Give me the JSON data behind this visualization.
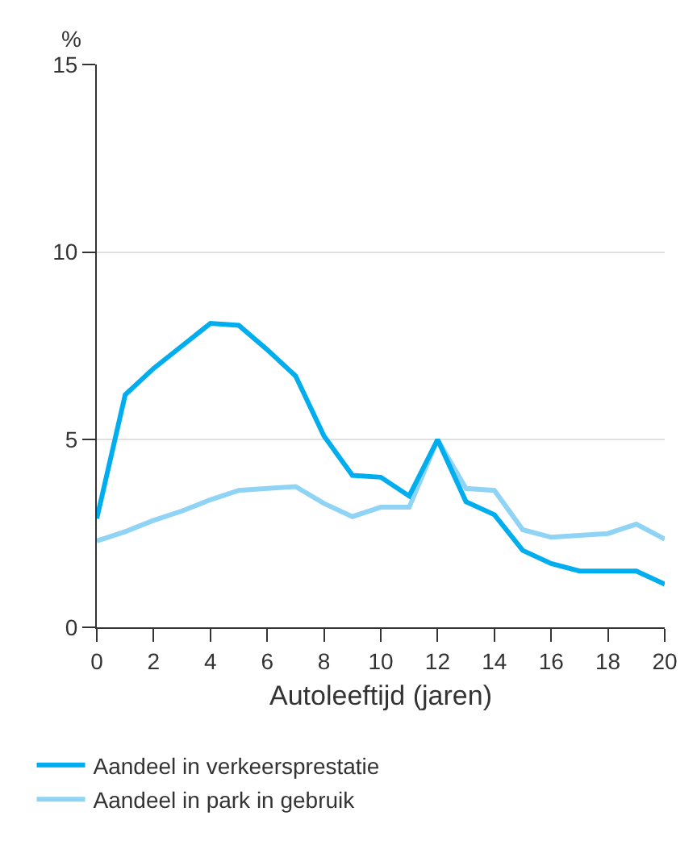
{
  "chart_data": {
    "type": "line",
    "ylabel": "%",
    "xlabel": "Autoleeftijd (jaren)",
    "x": [
      0,
      1,
      2,
      3,
      4,
      5,
      6,
      7,
      8,
      9,
      10,
      11,
      12,
      13,
      14,
      15,
      16,
      17,
      18,
      19,
      20
    ],
    "series": [
      {
        "name": "Aandeel in verkeersprestatie",
        "color": "#00aeef",
        "values": [
          2.9,
          6.2,
          6.9,
          7.5,
          8.1,
          8.05,
          7.4,
          6.7,
          5.1,
          4.05,
          4.0,
          3.5,
          5.0,
          3.35,
          3.0,
          2.05,
          1.7,
          1.5,
          1.5,
          1.5,
          1.15
        ]
      },
      {
        "name": "Aandeel in park in gebruik",
        "color": "#8fd3f5",
        "values": [
          2.3,
          2.55,
          2.85,
          3.1,
          3.4,
          3.65,
          3.7,
          3.75,
          3.3,
          2.95,
          3.2,
          3.2,
          5.0,
          3.7,
          3.65,
          2.6,
          2.4,
          2.45,
          2.5,
          2.75,
          2.35
        ]
      }
    ],
    "xlim": [
      0,
      20
    ],
    "xticks": [
      0,
      2,
      4,
      6,
      8,
      10,
      12,
      14,
      16,
      18,
      20
    ],
    "ylim": [
      0,
      15
    ],
    "yticks": [
      0,
      5,
      10,
      15
    ],
    "grid": "y",
    "legend": "bottom",
    "marker": "none",
    "line_style": "solid"
  }
}
